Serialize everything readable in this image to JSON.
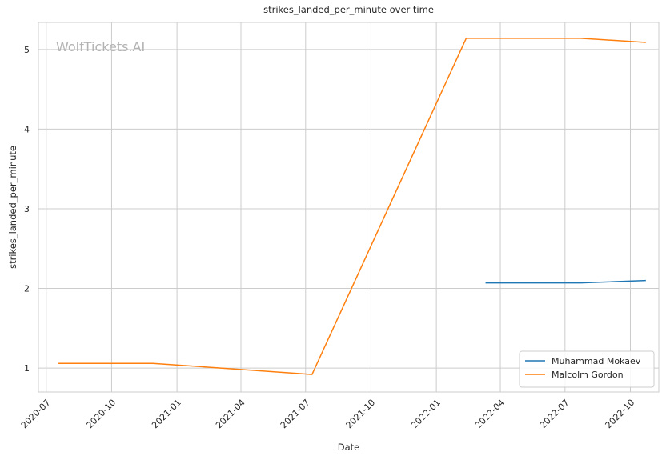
{
  "chart_data": {
    "type": "line",
    "title": "strikes_landed_per_minute over time",
    "xlabel": "Date",
    "ylabel": "strikes_landed_per_minute",
    "watermark": "WolfTickets.AI",
    "x_ticks": [
      "2020-07",
      "2020-10",
      "2021-01",
      "2021-04",
      "2021-07",
      "2021-10",
      "2022-01",
      "2022-04",
      "2022-07",
      "2022-10"
    ],
    "y_ticks": [
      "1",
      "2",
      "3",
      "4",
      "5"
    ],
    "xlim": [
      "2020-06-20",
      "2022-11-10"
    ],
    "ylim": [
      0.7,
      5.34
    ],
    "grid": true,
    "legend_position": "lower-right",
    "series": [
      {
        "name": "Muhammad Mokaev",
        "color": "#1f77b4",
        "points": [
          {
            "x": "2022-03-12",
            "y": 2.07
          },
          {
            "x": "2022-07-23",
            "y": 2.07
          },
          {
            "x": "2022-10-22",
            "y": 2.1
          }
        ]
      },
      {
        "name": "Malcolm Gordon",
        "color": "#ff7f0e",
        "points": [
          {
            "x": "2020-07-18",
            "y": 1.06
          },
          {
            "x": "2020-11-28",
            "y": 1.06
          },
          {
            "x": "2021-07-10",
            "y": 0.92
          },
          {
            "x": "2022-02-12",
            "y": 5.14
          },
          {
            "x": "2022-07-23",
            "y": 5.14
          },
          {
            "x": "2022-10-22",
            "y": 5.09
          }
        ]
      }
    ]
  }
}
